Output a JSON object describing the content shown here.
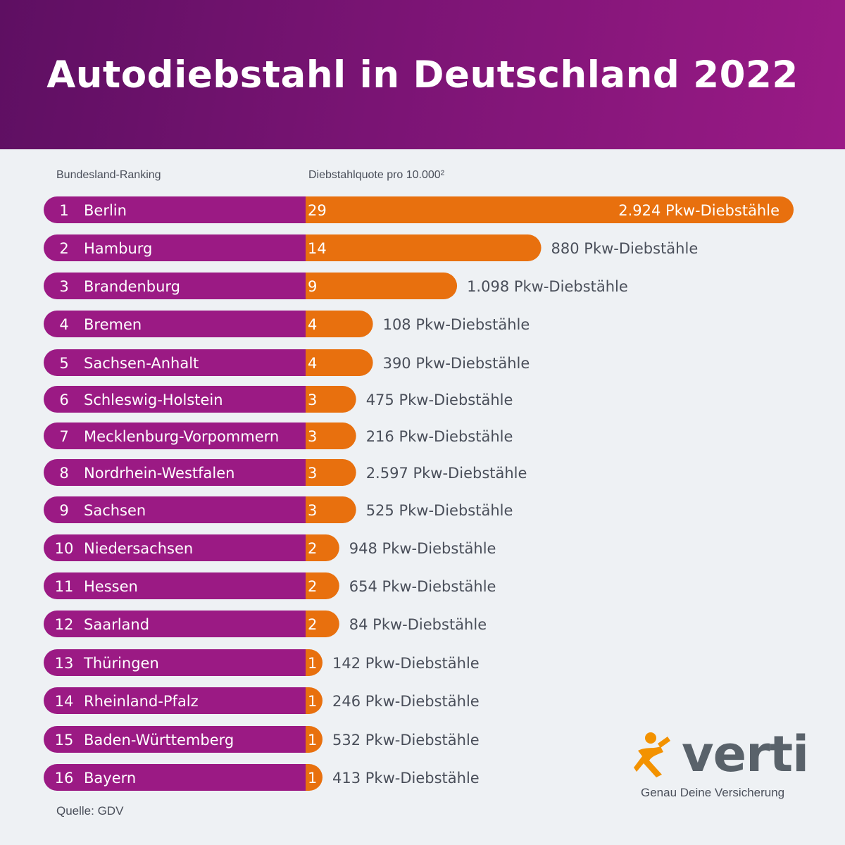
{
  "title": "Autodiebstahl in Deutschland 2022",
  "columns": {
    "ranking_label": "Bundesland-Ranking",
    "rate_label": "Diebstahlquote pro 10.000²"
  },
  "source": "Quelle: GDV",
  "logo": {
    "wordmark": "verti",
    "tagline": "Genau Deine Versicherung",
    "icon": "running-figure-icon"
  },
  "colors": {
    "header": "#7a1474",
    "ranking_bar": "#9b1a84",
    "rate_bar": "#e8700e",
    "count_text": "#4a4f5a",
    "background": "#eef1f4"
  },
  "chart_data": {
    "type": "bar",
    "orientation": "horizontal",
    "categories": [
      "Berlin",
      "Hamburg",
      "Brandenburg",
      "Bremen",
      "Sachsen-Anhalt",
      "Schleswig-Holstein",
      "Mecklenburg-Vorpommern",
      "Nordrhein-Westfalen",
      "Sachsen",
      "Niedersachsen",
      "Hessen",
      "Saarland",
      "Thüringen",
      "Rheinland-Pfalz",
      "Baden-Württemberg",
      "Bayern"
    ],
    "ranks": [
      "1",
      "2",
      "3",
      "4",
      "5",
      "6",
      "7",
      "8",
      "9",
      "10",
      "11",
      "12",
      "13",
      "14",
      "15",
      "16"
    ],
    "values": [
      29,
      14,
      9,
      4,
      4,
      3,
      3,
      3,
      3,
      2,
      2,
      2,
      1,
      1,
      1,
      1
    ],
    "value_labels": [
      "29",
      "14",
      "9",
      "4",
      "4",
      "3",
      "3",
      "3",
      "3",
      "2",
      "2",
      "2",
      "1",
      "1",
      "1",
      "1"
    ],
    "counts": [
      "2.924 Pkw-Diebstähle",
      "880 Pkw-Diebstähle",
      "1.098 Pkw-Diebstähle",
      "108 Pkw-Diebstähle",
      "390 Pkw-Diebstähle",
      "475 Pkw-Diebstähle",
      "216 Pkw-Diebstähle",
      "2.597 Pkw-Diebstähle",
      "525 Pkw-Diebstähle",
      "948 Pkw-Diebstähle",
      "654 Pkw-Diebstähle",
      "84 Pkw-Diebstähle",
      "142 Pkw-Diebstähle",
      "246 Pkw-Diebstähle",
      "532 Pkw-Diebstähle",
      "413 Pkw-Diebstähle"
    ],
    "title": "Autodiebstahl in Deutschland 2022",
    "xlabel": "Diebstahlquote pro 10.000²",
    "ylabel": "Bundesland-Ranking",
    "xlim": [
      0,
      29
    ],
    "grid": false
  }
}
